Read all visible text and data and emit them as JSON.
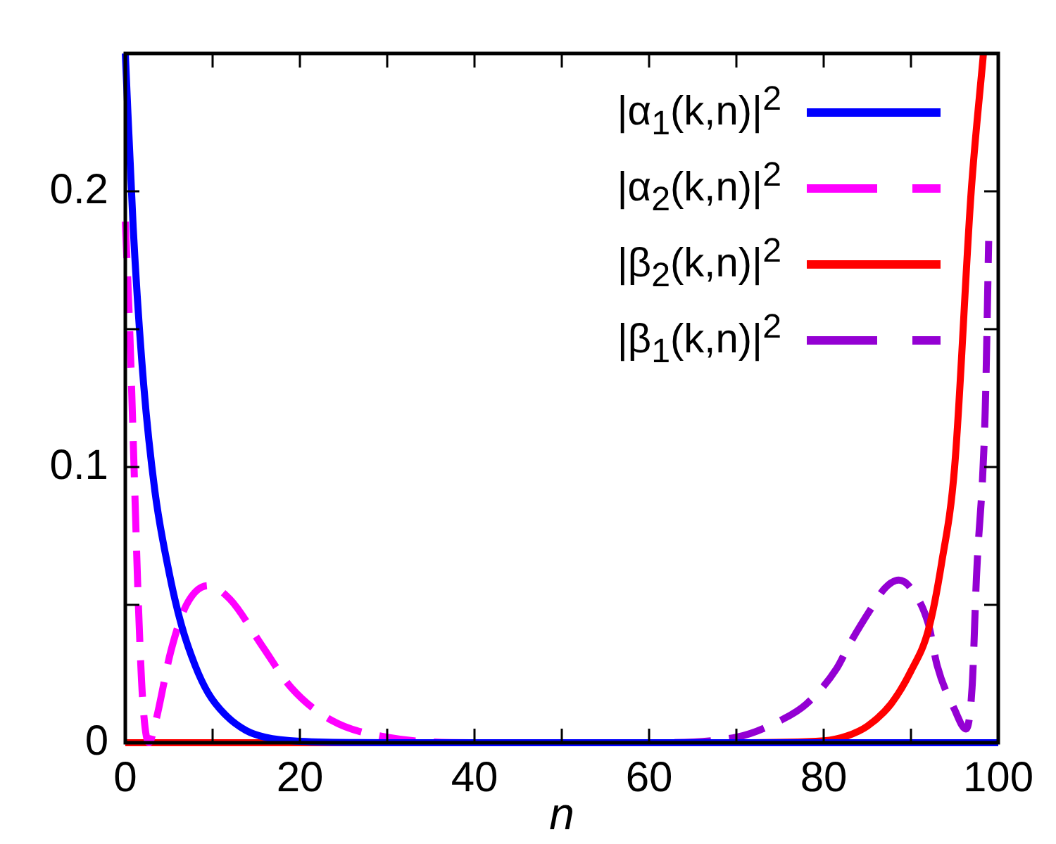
{
  "chart_data": {
    "type": "line",
    "xlabel": "n",
    "xlim": [
      0,
      100
    ],
    "ylim": [
      0,
      0.25
    ],
    "xticks": [
      0,
      {
        "value": 10,
        "label": null
      },
      20,
      {
        "value": 30,
        "label": null
      },
      40,
      {
        "value": 50,
        "label": null
      },
      60,
      {
        "value": 70,
        "label": null
      },
      80,
      {
        "value": 90,
        "label": null
      },
      100
    ],
    "yticks": [
      0,
      {
        "value": 0.05,
        "label": null
      },
      0.1,
      {
        "value": 0.15,
        "label": null
      },
      0.2
    ],
    "grid": false,
    "legend": "top right",
    "marker": "none",
    "series": [
      {
        "name": "|α$_{1}$(k,n)|$^{2}$",
        "color": "#0000ff",
        "line_style": "solid",
        "x": [
          0,
          0.9,
          2.1,
          3.4,
          5,
          6.4,
          8,
          9.5,
          11.5,
          13.8,
          16,
          20,
          30,
          50,
          100
        ],
        "values": [
          0.25,
          0.187,
          0.13,
          0.091,
          0.062,
          0.043,
          0.028,
          0.018,
          0.01,
          0.0045,
          0.002,
          0.0005,
          0,
          0,
          0
        ]
      },
      {
        "name": "|α$_{2}$(k,n)|$^{2}$",
        "color": "#ff00ff",
        "line_style": "dashed",
        "x": [
          0,
          0.5,
          1,
          1.5,
          2,
          2.7,
          3.5,
          5.2,
          7,
          9.5,
          12,
          15.7,
          19,
          23.7,
          30,
          40,
          60,
          100
        ],
        "values": [
          0.189,
          0.15,
          0.1,
          0.05,
          0.015,
          0,
          0.008,
          0.033,
          0.05,
          0.057,
          0.052,
          0.035,
          0.02,
          0.008,
          0.002,
          0,
          0,
          0
        ]
      },
      {
        "name": "|β$_{2}$(k,n)|$^{2}$",
        "color": "#ff0000",
        "line_style": "solid",
        "x": [
          0,
          50,
          70,
          80,
          82.7,
          85,
          87.7,
          90,
          92,
          93.5,
          95,
          96.9,
          98.3
        ],
        "values": [
          0,
          0,
          0,
          0.0007,
          0.0025,
          0.006,
          0.014,
          0.026,
          0.041,
          0.065,
          0.1,
          0.2,
          0.25
        ]
      },
      {
        "name": "|β$_{1}$(k,n)|$^{2}$",
        "color": "#9400d3",
        "line_style": "dashed",
        "x": [
          0,
          40,
          60,
          70,
          75,
          78,
          81.5,
          83,
          85.5,
          87,
          88.6,
          90,
          92,
          93,
          95,
          96.3,
          97,
          97.5,
          98.5,
          98.9
        ],
        "values": [
          0,
          0,
          0,
          0.002,
          0.008,
          0.014,
          0.027,
          0.036,
          0.049,
          0.056,
          0.059,
          0.056,
          0.043,
          0.028,
          0.012,
          0.005,
          0.02,
          0.06,
          0.12,
          0.182
        ]
      }
    ]
  }
}
